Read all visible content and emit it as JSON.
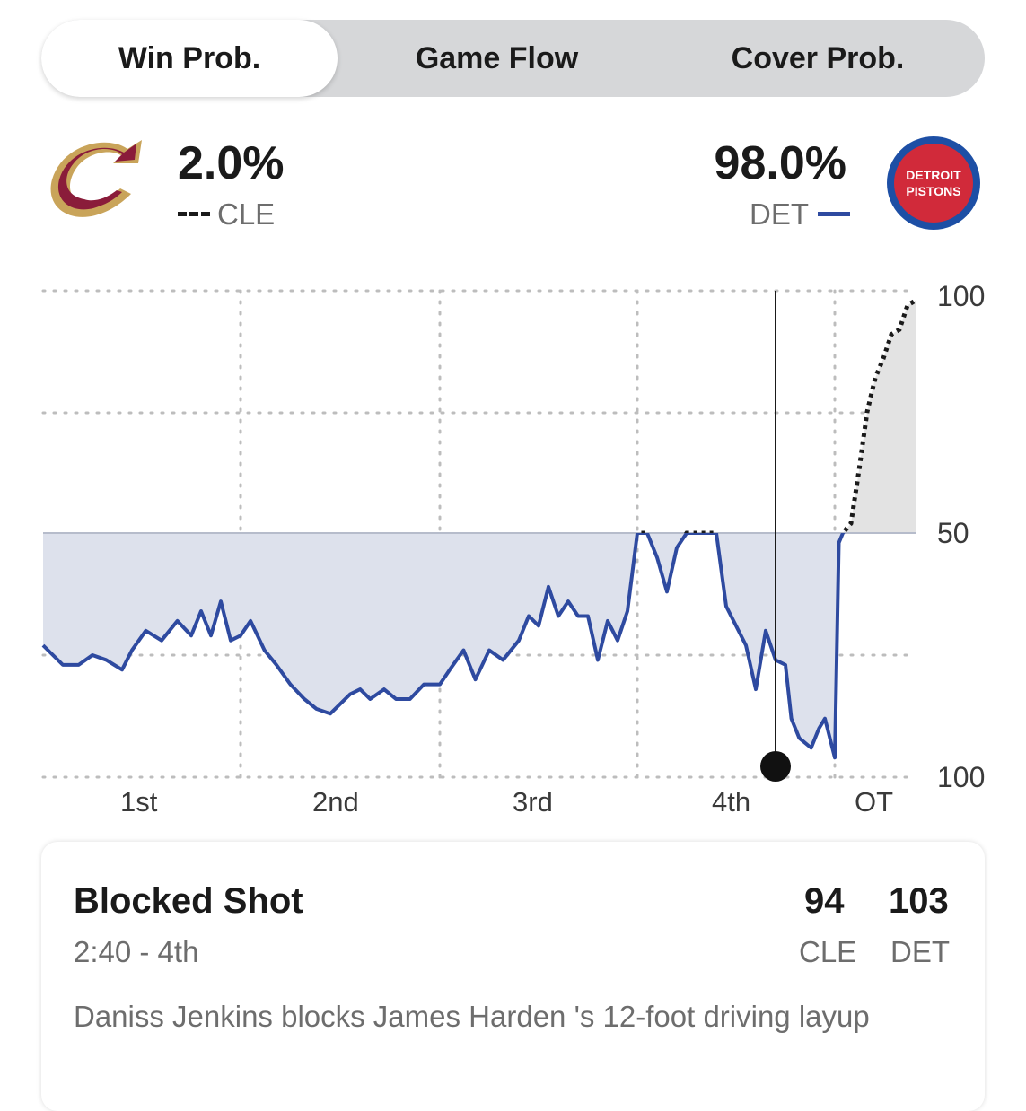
{
  "tabs": [
    {
      "label": "Win Prob.",
      "active": true
    },
    {
      "label": "Game Flow",
      "active": false
    },
    {
      "label": "Cover Prob.",
      "active": false
    }
  ],
  "teams": {
    "away": {
      "abbr": "CLE",
      "pct": "2.0%",
      "line_style": "dashed",
      "color": "#1a1a1a",
      "logo": "cavaliers-logo"
    },
    "home": {
      "abbr": "DET",
      "pct": "98.0%",
      "line_style": "solid",
      "color": "#2e4aa0",
      "logo": "pistons-logo",
      "logo_text": [
        "DETROIT",
        "PISTONS"
      ]
    }
  },
  "colors": {
    "det_line": "#2e4aa0",
    "det_fill": "#dde1ec",
    "cle_fill": "#e3e3e3",
    "cle_red": "#8a1c3a",
    "cle_gold": "#c9a45a",
    "det_red": "#d12a3a",
    "det_blue": "#1d4fa5"
  },
  "chart_data": {
    "type": "area",
    "y_tick_labels": [
      "100",
      "50",
      "100"
    ],
    "x_tick_labels": [
      "1st",
      "2nd",
      "3rd",
      "4th",
      "OT"
    ],
    "quarters": [
      "1st",
      "2nd",
      "3rd",
      "4th",
      "OT"
    ],
    "ylim": [
      0,
      100
    ],
    "grid": true,
    "series": [
      {
        "name": "DET",
        "note": "home win probability (%), plotted below the 50 line when DET leads",
        "x_quarter_progress": [
          0,
          0.05,
          0.1,
          0.18,
          0.25,
          0.32,
          0.4,
          0.45,
          0.52,
          0.6,
          0.68,
          0.75,
          0.8,
          0.85,
          0.9,
          0.95,
          1.0,
          1.05,
          1.12,
          1.18,
          1.25,
          1.32,
          1.38,
          1.45,
          1.5,
          1.55,
          1.6,
          1.65,
          1.72,
          1.78,
          1.85,
          1.92,
          2.0,
          2.05,
          2.12,
          2.18,
          2.25,
          2.32,
          2.4,
          2.45,
          2.5,
          2.55,
          2.6,
          2.65,
          2.7,
          2.75,
          2.8,
          2.85,
          2.9,
          2.95,
          3.0,
          3.05,
          3.1,
          3.15,
          3.2,
          3.25,
          3.3,
          3.35,
          3.4,
          3.45,
          3.5,
          3.55,
          3.6,
          3.65,
          3.7,
          3.75,
          3.78,
          3.82,
          3.88,
          3.92,
          3.95,
          4.0,
          4.05,
          4.1,
          4.2,
          4.3,
          4.4,
          4.5,
          4.55,
          4.6,
          4.7,
          4.8,
          4.9,
          5.0
        ],
        "values": [
          73,
          75,
          77,
          77,
          75,
          76,
          78,
          74,
          70,
          72,
          68,
          71,
          66,
          71,
          64,
          72,
          71,
          68,
          74,
          77,
          81,
          84,
          86,
          87,
          85,
          83,
          82,
          84,
          82,
          84,
          84,
          81,
          81,
          78,
          74,
          80,
          74,
          76,
          72,
          67,
          69,
          61,
          67,
          64,
          67,
          67,
          76,
          68,
          72,
          66,
          50,
          50,
          55,
          62,
          53,
          50,
          50,
          50,
          50,
          65,
          69,
          73,
          82,
          70,
          76,
          77,
          88,
          92,
          94,
          90,
          88,
          96,
          52,
          50,
          48,
          37,
          25,
          18,
          16,
          14,
          9,
          8,
          3,
          2
        ]
      }
    ],
    "marker": {
      "label": "2:40 - 4th",
      "x_quarter_progress": 3.7,
      "det_value": 100
    }
  },
  "play": {
    "title": "Blocked Shot",
    "time": "2:40 - 4th",
    "away_score": "94",
    "home_score": "103",
    "away_abbr": "CLE",
    "home_abbr": "DET",
    "description": "Daniss Jenkins blocks James Harden 's 12-foot driving layup"
  }
}
